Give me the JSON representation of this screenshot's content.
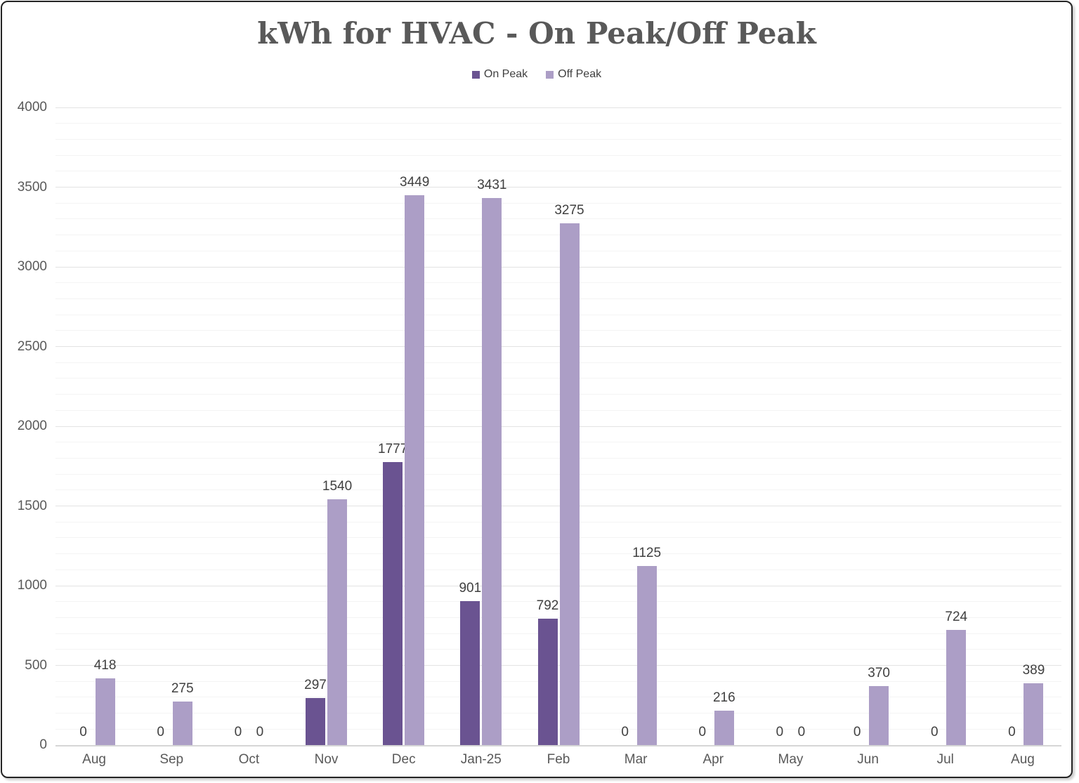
{
  "chart_data": {
    "type": "bar",
    "title": "kWh for HVAC - On Peak/Off Peak",
    "categories": [
      "Aug",
      "Sep",
      "Oct",
      "Nov",
      "Dec",
      "Jan-25",
      "Feb",
      "Mar",
      "Apr",
      "May",
      "Jun",
      "Jul",
      "Aug"
    ],
    "series": [
      {
        "name": "On Peak",
        "color": "#6A5391",
        "values": [
          0,
          0,
          0,
          297,
          1777,
          901,
          792,
          0,
          0,
          0,
          0,
          0,
          0
        ]
      },
      {
        "name": "Off Peak",
        "color": "#AC9EC6",
        "values": [
          418,
          275,
          0,
          1540,
          3449,
          3431,
          3275,
          1125,
          216,
          0,
          370,
          724,
          389
        ]
      }
    ],
    "xlabel": "",
    "ylabel": "",
    "ylim": [
      0,
      4000
    ],
    "y_ticks": [
      0,
      500,
      1000,
      1500,
      2000,
      2500,
      3000,
      3500,
      4000
    ],
    "y_major_step": 500,
    "y_minor_step": 100,
    "grid": "horizontal, major and minor lines",
    "legend_position": "top-center",
    "data_labels": true
  },
  "colors": {
    "on_peak": "#6A5391",
    "off_peak": "#AC9EC6",
    "title_text": "#595959",
    "axis_text": "#595959",
    "data_label_text": "#404040",
    "gridline_major": "#E3E3E3",
    "gridline_minor": "#F4F4F4",
    "axis_line": "#D6D6D6",
    "background": "#FFFFFF",
    "border": "#242424"
  }
}
